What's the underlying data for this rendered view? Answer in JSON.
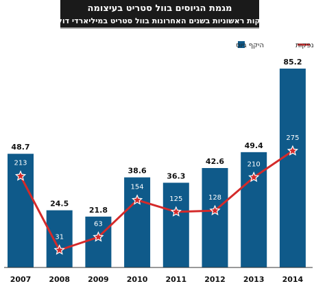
{
  "header": {
    "title": "מגמת הגיוסים בוול סטריט בעיצומה",
    "subtitle": "הנפקות ראשוניות בשנים האחרונות בוול סטריט במיליארדי דולרים"
  },
  "legend": {
    "bars_label": "היקף גיוס",
    "line_label": "מספר הנפקות"
  },
  "colors": {
    "bar": "#0f5a8a",
    "line": "#d42a2a",
    "header_bg": "#1a1a1a",
    "header_text": "#ffffff"
  },
  "chart_data": {
    "type": "bar",
    "categories": [
      "2007",
      "2008",
      "2009",
      "2010",
      "2011",
      "2012",
      "2013",
      "2014"
    ],
    "series": [
      {
        "name": "היקף גיוס",
        "type": "bar",
        "values": [
          48.7,
          24.5,
          21.8,
          38.6,
          36.3,
          42.6,
          49.4,
          85.2
        ]
      },
      {
        "name": "מספר הנפקות",
        "type": "line",
        "values": [
          213,
          31,
          63,
          154,
          125,
          128,
          210,
          275
        ]
      }
    ],
    "grid": false,
    "legend_position": "top-right"
  }
}
